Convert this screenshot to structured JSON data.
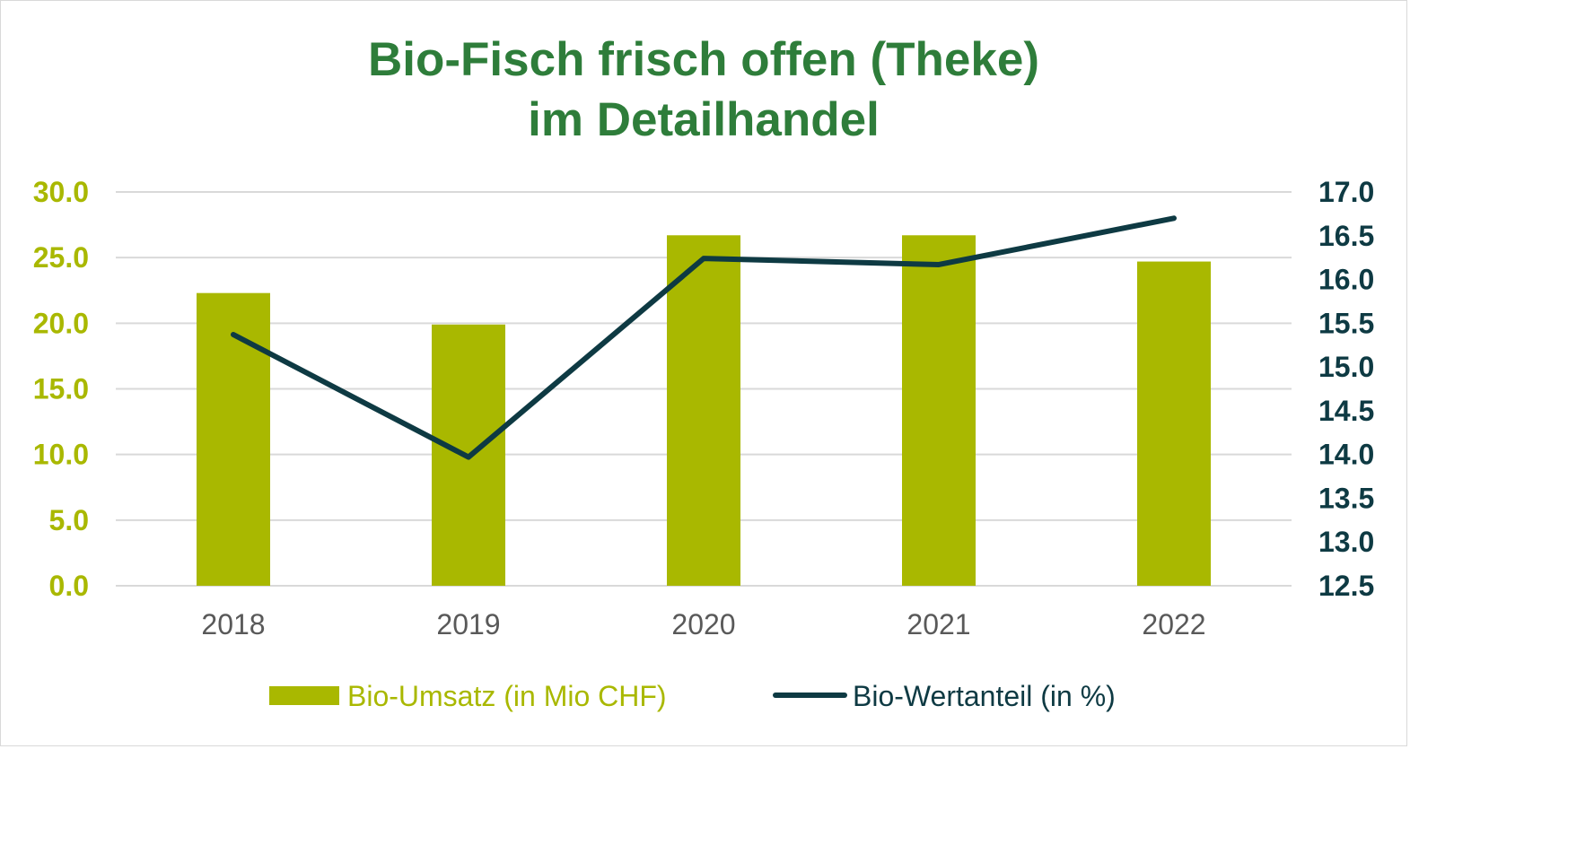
{
  "chart_data": {
    "type": "bar",
    "title": "Bio-Fisch frisch offen (Theke)",
    "subtitle": "im Detailhandel",
    "categories": [
      "2018",
      "2019",
      "2020",
      "2021",
      "2022"
    ],
    "series": [
      {
        "name": "Bio-Umsatz (in Mio CHF)",
        "type": "bar",
        "axis": "left",
        "color": "#a9b800",
        "values": [
          22.3,
          19.9,
          26.7,
          26.7,
          24.7
        ]
      },
      {
        "name": "Bio-Wertanteil (in %)",
        "type": "line",
        "axis": "right",
        "color": "#0e3a43",
        "values": [
          15.37,
          13.97,
          16.24,
          16.17,
          16.7
        ]
      }
    ],
    "y_left": {
      "range": [
        0,
        30
      ],
      "ticks": [
        "0.0",
        "5.0",
        "10.0",
        "15.0",
        "20.0",
        "25.0",
        "30.0"
      ],
      "color": "#a9b800"
    },
    "y_right": {
      "range": [
        12.5,
        17
      ],
      "ticks": [
        "12.5",
        "13.0",
        "13.5",
        "14.0",
        "14.5",
        "15.0",
        "15.5",
        "16.0",
        "16.5",
        "17.0"
      ],
      "color": "#0e3a43"
    },
    "grid": true,
    "legend": "bottom",
    "title_color": "#2e7d3a"
  }
}
